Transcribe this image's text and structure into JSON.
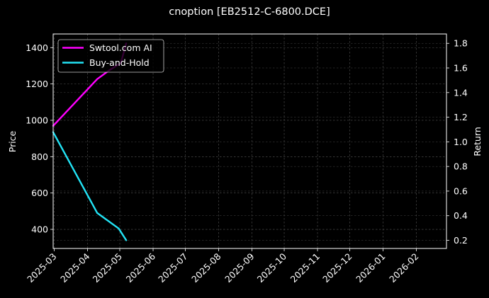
{
  "chart_data": {
    "type": "line",
    "title": "cnoption [EB2512-C-6800.DCE]",
    "ylabel_left": "Price",
    "ylabel_right": "Return",
    "x_ticks": [
      "2025-03",
      "2025-04",
      "2025-05",
      "2025-06",
      "2025-07",
      "2025-08",
      "2025-09",
      "2025-10",
      "2025-11",
      "2025-12",
      "2026-01",
      "2026-02"
    ],
    "xlim": [
      "2025-02-28",
      "2026-03-01"
    ],
    "ylim_left": [
      295,
      1475
    ],
    "ylim_right": [
      0.134,
      1.876
    ],
    "y_ticks_left": [
      400,
      600,
      800,
      1000,
      1200,
      1400
    ],
    "y_ticks_right": [
      0.2,
      0.4,
      0.6,
      0.8,
      1.0,
      1.2,
      1.4,
      1.6,
      1.8
    ],
    "grid": true,
    "legend_position": "top-left",
    "background": "#000000",
    "series": [
      {
        "name": "Swtool.com AI",
        "axis": "right",
        "color": "#ff00ff",
        "points": [
          {
            "x": "2025-02-28",
            "y": 1.13
          },
          {
            "x": "2025-04-10",
            "y": 1.51
          },
          {
            "x": "2025-04-21",
            "y": 1.58
          },
          {
            "x": "2025-05-02",
            "y": 1.64
          },
          {
            "x": "2025-05-07",
            "y": 1.8
          }
        ]
      },
      {
        "name": "Buy-and-Hold",
        "axis": "left",
        "color": "#22e3f5",
        "points": [
          {
            "x": "2025-02-28",
            "y": 935
          },
          {
            "x": "2025-04-10",
            "y": 490
          },
          {
            "x": "2025-04-30",
            "y": 405
          },
          {
            "x": "2025-05-07",
            "y": 340
          }
        ]
      }
    ]
  }
}
